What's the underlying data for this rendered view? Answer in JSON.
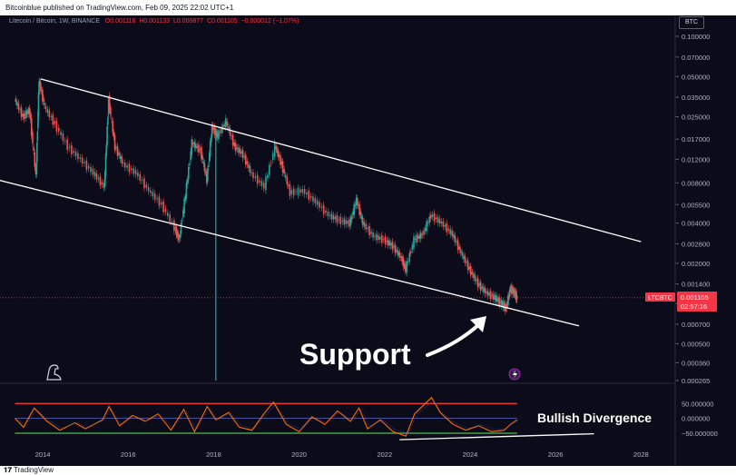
{
  "header": {
    "published_text": "Bitcoinblue published on TradingView.com, Feb 09, 2025 22:02 UTC+1"
  },
  "legend": {
    "symbol": "Litecoin / Bitcoin, 1W, BINANCE",
    "open": "O0.001116",
    "high": "H0.001133",
    "low": "L0.000877",
    "close": "C0.001105",
    "change": "−0.000012 (−1.07%)"
  },
  "currency_label": "BTC",
  "price_tag": {
    "symbol": "LTCBTC",
    "price": "0.001105",
    "countdown": "02:57:16"
  },
  "annotations": {
    "support": "Support",
    "bullish_divergence": "Bullish Divergence"
  },
  "footer": {
    "brand": "TradingView"
  },
  "colors": {
    "background": "#0b0b1a",
    "candle_up": "#26a69a",
    "candle_down": "#ef5350",
    "channel": "#ffffff",
    "overbought": "#e53935",
    "oversold": "#43a047",
    "osc_line": "#ff6d00",
    "midline": "#5c6bc0"
  },
  "chart_data": [
    {
      "type": "line",
      "title": "Litecoin / Bitcoin, 1W, BINANCE",
      "scale": "log",
      "y_ticks": [
        "0.100000",
        "0.070000",
        "0.050000",
        "0.035000",
        "0.025000",
        "0.017000",
        "0.012000",
        "0.008000",
        "0.005500",
        "0.004000",
        "0.002800",
        "0.002000",
        "0.001400",
        "0.001000",
        "0.000700",
        "0.000500",
        "0.000360",
        "0.000265"
      ],
      "x_ticks": [
        "2014",
        "2016",
        "2018",
        "2020",
        "2022",
        "2024",
        "2026",
        "2028"
      ],
      "ylim": [
        0.000265,
        0.1
      ],
      "xlim": [
        2013.0,
        2028.8
      ],
      "series": [
        {
          "values": [
            {
              "x": 2013.35,
              "y": 0.034
            },
            {
              "x": 2013.55,
              "y": 0.025
            },
            {
              "x": 2013.7,
              "y": 0.028
            },
            {
              "x": 2013.85,
              "y": 0.009
            },
            {
              "x": 2013.92,
              "y": 0.047
            },
            {
              "x": 2014.05,
              "y": 0.03
            },
            {
              "x": 2014.3,
              "y": 0.022
            },
            {
              "x": 2014.6,
              "y": 0.015
            },
            {
              "x": 2014.9,
              "y": 0.012
            },
            {
              "x": 2015.2,
              "y": 0.0095
            },
            {
              "x": 2015.45,
              "y": 0.0075
            },
            {
              "x": 2015.55,
              "y": 0.034
            },
            {
              "x": 2015.7,
              "y": 0.015
            },
            {
              "x": 2015.9,
              "y": 0.011
            },
            {
              "x": 2016.2,
              "y": 0.0095
            },
            {
              "x": 2016.5,
              "y": 0.007
            },
            {
              "x": 2016.8,
              "y": 0.0055
            },
            {
              "x": 2017.1,
              "y": 0.0037
            },
            {
              "x": 2017.2,
              "y": 0.003
            },
            {
              "x": 2017.35,
              "y": 0.0065
            },
            {
              "x": 2017.5,
              "y": 0.016
            },
            {
              "x": 2017.7,
              "y": 0.014
            },
            {
              "x": 2017.85,
              "y": 0.0085
            },
            {
              "x": 2017.97,
              "y": 0.021
            },
            {
              "x": 2018.1,
              "y": 0.018
            },
            {
              "x": 2018.3,
              "y": 0.023
            },
            {
              "x": 2018.5,
              "y": 0.015
            },
            {
              "x": 2018.7,
              "y": 0.013
            },
            {
              "x": 2018.9,
              "y": 0.0093
            },
            {
              "x": 2019.2,
              "y": 0.0075
            },
            {
              "x": 2019.45,
              "y": 0.015
            },
            {
              "x": 2019.6,
              "y": 0.011
            },
            {
              "x": 2019.8,
              "y": 0.0068
            },
            {
              "x": 2020.1,
              "y": 0.007
            },
            {
              "x": 2020.4,
              "y": 0.0058
            },
            {
              "x": 2020.7,
              "y": 0.0046
            },
            {
              "x": 2020.95,
              "y": 0.0042
            },
            {
              "x": 2021.2,
              "y": 0.004
            },
            {
              "x": 2021.35,
              "y": 0.006
            },
            {
              "x": 2021.5,
              "y": 0.004
            },
            {
              "x": 2021.75,
              "y": 0.0032
            },
            {
              "x": 2022.0,
              "y": 0.003
            },
            {
              "x": 2022.2,
              "y": 0.0027
            },
            {
              "x": 2022.4,
              "y": 0.0022
            },
            {
              "x": 2022.5,
              "y": 0.0018
            },
            {
              "x": 2022.7,
              "y": 0.003
            },
            {
              "x": 2022.9,
              "y": 0.0033
            },
            {
              "x": 2023.1,
              "y": 0.0046
            },
            {
              "x": 2023.35,
              "y": 0.004
            },
            {
              "x": 2023.6,
              "y": 0.0033
            },
            {
              "x": 2023.8,
              "y": 0.0024
            },
            {
              "x": 2024.0,
              "y": 0.0018
            },
            {
              "x": 2024.2,
              "y": 0.0014
            },
            {
              "x": 2024.4,
              "y": 0.0012
            },
            {
              "x": 2024.6,
              "y": 0.0011
            },
            {
              "x": 2024.75,
              "y": 0.001
            },
            {
              "x": 2024.85,
              "y": 0.00092
            },
            {
              "x": 2024.95,
              "y": 0.0013
            },
            {
              "x": 2025.05,
              "y": 0.0012
            },
            {
              "x": 2025.1,
              "y": 0.001105
            }
          ]
        }
      ],
      "channel": {
        "upper": [
          {
            "x": 2013.95,
            "y": 0.048
          },
          {
            "x": 2028.0,
            "y": 0.0029
          }
        ],
        "lower": [
          {
            "x": 2012.9,
            "y": 0.0085
          },
          {
            "x": 2026.55,
            "y": 0.00068
          }
        ]
      },
      "annotations": [
        "Support"
      ]
    },
    {
      "type": "line",
      "title": "",
      "y_ticks": [
        "50.000000",
        "0.000000",
        "-50.000000"
      ],
      "ylim": [
        -90,
        100
      ],
      "overbought": 50,
      "oversold": -50,
      "series": [
        {
          "values": [
            {
              "x": 2013.35,
              "y": 0
            },
            {
              "x": 2013.55,
              "y": -30
            },
            {
              "x": 2013.8,
              "y": 35
            },
            {
              "x": 2014.1,
              "y": -10
            },
            {
              "x": 2014.4,
              "y": -40
            },
            {
              "x": 2014.75,
              "y": -15
            },
            {
              "x": 2015.0,
              "y": -35
            },
            {
              "x": 2015.4,
              "y": -5
            },
            {
              "x": 2015.55,
              "y": 40
            },
            {
              "x": 2015.8,
              "y": -25
            },
            {
              "x": 2016.1,
              "y": 10
            },
            {
              "x": 2016.4,
              "y": -10
            },
            {
              "x": 2016.7,
              "y": 15
            },
            {
              "x": 2017.0,
              "y": -40
            },
            {
              "x": 2017.3,
              "y": 30
            },
            {
              "x": 2017.55,
              "y": -45
            },
            {
              "x": 2017.85,
              "y": 40
            },
            {
              "x": 2018.05,
              "y": -5
            },
            {
              "x": 2018.35,
              "y": 20
            },
            {
              "x": 2018.6,
              "y": -30
            },
            {
              "x": 2018.9,
              "y": -40
            },
            {
              "x": 2019.2,
              "y": 20
            },
            {
              "x": 2019.4,
              "y": 55
            },
            {
              "x": 2019.7,
              "y": -20
            },
            {
              "x": 2020.0,
              "y": -45
            },
            {
              "x": 2020.3,
              "y": 5
            },
            {
              "x": 2020.6,
              "y": -20
            },
            {
              "x": 2020.9,
              "y": 25
            },
            {
              "x": 2021.2,
              "y": -10
            },
            {
              "x": 2021.4,
              "y": 35
            },
            {
              "x": 2021.6,
              "y": -35
            },
            {
              "x": 2021.9,
              "y": -5
            },
            {
              "x": 2022.2,
              "y": -45
            },
            {
              "x": 2022.5,
              "y": -60
            },
            {
              "x": 2022.7,
              "y": 15
            },
            {
              "x": 2022.95,
              "y": 50
            },
            {
              "x": 2023.1,
              "y": 70
            },
            {
              "x": 2023.3,
              "y": 20
            },
            {
              "x": 2023.6,
              "y": -20
            },
            {
              "x": 2023.9,
              "y": -40
            },
            {
              "x": 2024.2,
              "y": -25
            },
            {
              "x": 2024.5,
              "y": -45
            },
            {
              "x": 2024.8,
              "y": -40
            },
            {
              "x": 2024.95,
              "y": -20
            },
            {
              "x": 2025.1,
              "y": -5
            }
          ]
        }
      ],
      "divergence_line": [
        {
          "x": 2022.35,
          "y": -72
        },
        {
          "x": 2026.9,
          "y": -52
        }
      ],
      "annotations": [
        "Bullish Divergence"
      ]
    }
  ]
}
